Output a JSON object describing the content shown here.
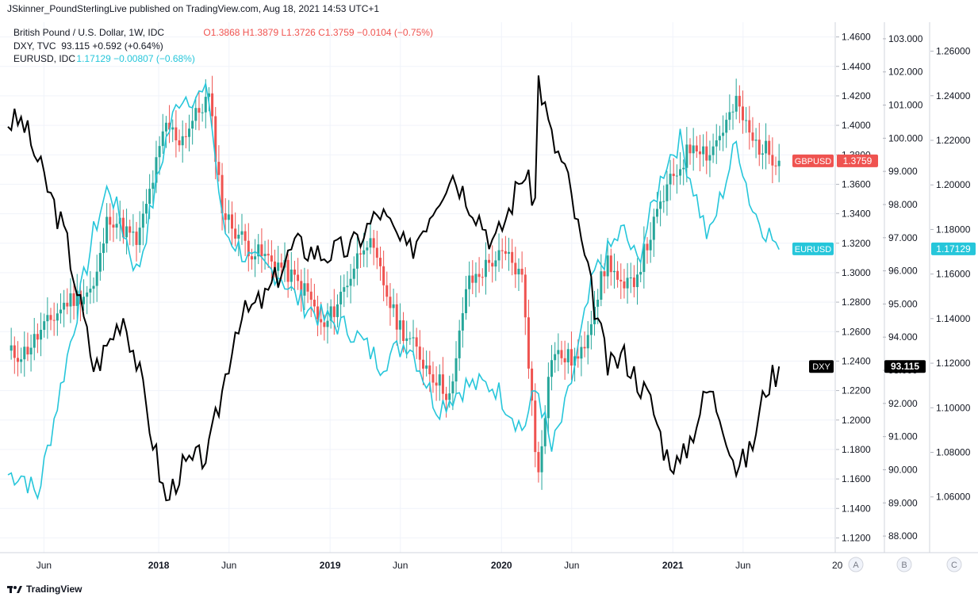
{
  "header": {
    "published": "JSkinner_PoundSterlingLive published on TradingView.com, Aug 18, 2021 14:53 UTC+1"
  },
  "legend": [
    {
      "label": "British Pound / U.S. Dollar, 1W, IDC",
      "values": "O1.3868  H1.3879  L1.3726  C1.3759  −0.0104 (−0.75%)",
      "color": "#ef5350"
    },
    {
      "label": "DXY, TVC",
      "values": "93.115  +0.592 (+0.64%)",
      "color": "#131722"
    },
    {
      "label": "EURUSD, IDC",
      "values": "1.17129  −0.00807 (−0.68%)",
      "color": "#26c6da"
    }
  ],
  "branding": {
    "logo_text": "TradingView"
  },
  "scale_buttons": [
    "A",
    "B",
    "C"
  ],
  "price_badges": [
    {
      "name": "GBPUSD",
      "value": "1.3759",
      "color": "#ef5350"
    },
    {
      "name": "EURUSD",
      "value": "1.17129",
      "color": "#26c6da"
    },
    {
      "name": "DXY",
      "value": "93.115",
      "color": "#000000"
    }
  ],
  "colors": {
    "up": "#26a69a",
    "down": "#ef5350",
    "eurusd": "#26c6da",
    "dxy": "#000000",
    "grid": "#f0f3fa"
  },
  "chart_data": {
    "type": "line",
    "x_tick_labels": [
      "Jun",
      "2018",
      "Jun",
      "2019",
      "Jun",
      "2020",
      "Jun",
      "2021",
      "Jun",
      "20"
    ],
    "axes": {
      "A": {
        "series": "GBPUSD",
        "range": [
          1.11,
          1.47
        ],
        "ticks": [
          "1.4600",
          "1.4400",
          "1.4200",
          "1.4000",
          "1.3800",
          "1.3600",
          "1.3400",
          "1.3200",
          "1.3000",
          "1.2800",
          "1.2600",
          "1.2400",
          "1.2200",
          "1.2000",
          "1.1800",
          "1.1600",
          "1.1400",
          "1.1200"
        ]
      },
      "B": {
        "series": "DXY",
        "range": [
          87.5,
          103.5
        ],
        "ticks": [
          "103.000",
          "102.000",
          "101.000",
          "100.000",
          "99.000",
          "98.000",
          "97.000",
          "96.000",
          "95.000",
          "94.000",
          "93.000",
          "92.000",
          "91.000",
          "90.000",
          "89.000",
          "88.000"
        ]
      },
      "C": {
        "series": "EURUSD",
        "range": [
          1.035,
          1.273
        ],
        "ticks": [
          "1.26000",
          "1.24000",
          "1.22000",
          "1.20000",
          "1.18000",
          "1.16000",
          "1.14000",
          "1.12000",
          "1.10000",
          "1.08000",
          "1.06000"
        ]
      }
    },
    "series": [
      {
        "name": "GBPUSD",
        "style": "candlestick",
        "axis": "A",
        "anchors": [
          [
            "2017-03",
            1.245
          ],
          [
            "2017-06",
            1.28
          ],
          [
            "2017-08",
            1.29
          ],
          [
            "2017-09",
            1.34
          ],
          [
            "2017-11",
            1.32
          ],
          [
            "2018-01",
            1.4
          ],
          [
            "2018-02",
            1.39
          ],
          [
            "2018-04",
            1.42
          ],
          [
            "2018-05",
            1.34
          ],
          [
            "2018-07",
            1.315
          ],
          [
            "2018-09",
            1.305
          ],
          [
            "2018-11",
            1.285
          ],
          [
            "2018-12",
            1.26
          ],
          [
            "2019-02",
            1.3
          ],
          [
            "2019-03",
            1.325
          ],
          [
            "2019-04",
            1.3
          ],
          [
            "2019-05",
            1.27
          ],
          [
            "2019-07",
            1.24
          ],
          [
            "2019-09",
            1.215
          ],
          [
            "2019-10",
            1.29
          ],
          [
            "2019-12",
            1.31
          ],
          [
            "2020-01",
            1.31
          ],
          [
            "2020-02",
            1.295
          ],
          [
            "2020-03",
            1.16
          ],
          [
            "2020-04",
            1.245
          ],
          [
            "2020-06",
            1.24
          ],
          [
            "2020-07",
            1.28
          ],
          [
            "2020-08",
            1.31
          ],
          [
            "2020-09",
            1.285
          ],
          [
            "2020-10",
            1.3
          ],
          [
            "2020-12",
            1.355
          ],
          [
            "2021-02",
            1.39
          ],
          [
            "2021-03",
            1.38
          ],
          [
            "2021-05",
            1.415
          ],
          [
            "2021-06",
            1.39
          ],
          [
            "2021-08",
            1.376
          ]
        ]
      },
      {
        "name": "DXY",
        "style": "line",
        "axis": "B",
        "anchors": [
          [
            "2017-03",
            100.5
          ],
          [
            "2017-06",
            97.0
          ],
          [
            "2017-08",
            93.0
          ],
          [
            "2017-10",
            94.7
          ],
          [
            "2017-11",
            93.2
          ],
          [
            "2018-01",
            89.0
          ],
          [
            "2018-02",
            90.0
          ],
          [
            "2018-04",
            90.5
          ],
          [
            "2018-06",
            94.5
          ],
          [
            "2018-08",
            95.2
          ],
          [
            "2018-10",
            96.8
          ],
          [
            "2018-12",
            96.5
          ],
          [
            "2019-02",
            96.7
          ],
          [
            "2019-04",
            97.8
          ],
          [
            "2019-06",
            96.5
          ],
          [
            "2019-08",
            98.2
          ],
          [
            "2019-09",
            99.0
          ],
          [
            "2019-11",
            97.6
          ],
          [
            "2019-12",
            96.8
          ],
          [
            "2020-01",
            97.8
          ],
          [
            "2020-02",
            99.0
          ],
          [
            "2020-03",
            98.0
          ],
          [
            "2020-03",
            102.0
          ],
          [
            "2020-04",
            100.0
          ],
          [
            "2020-05",
            99.0
          ],
          [
            "2020-06",
            97.0
          ],
          [
            "2020-08",
            93.0
          ],
          [
            "2020-09",
            93.5
          ],
          [
            "2020-11",
            92.0
          ],
          [
            "2020-12",
            90.5
          ],
          [
            "2021-01",
            90.1
          ],
          [
            "2021-03",
            92.5
          ],
          [
            "2021-04",
            91.5
          ],
          [
            "2021-05",
            90.0
          ],
          [
            "2021-06",
            90.6
          ],
          [
            "2021-07",
            92.5
          ],
          [
            "2021-08",
            93.115
          ]
        ]
      },
      {
        "name": "EURUSD",
        "style": "line",
        "axis": "C",
        "anchors": [
          [
            "2017-03",
            1.07
          ],
          [
            "2017-04",
            1.06
          ],
          [
            "2017-06",
            1.12
          ],
          [
            "2017-08",
            1.18
          ],
          [
            "2017-09",
            1.2
          ],
          [
            "2017-11",
            1.16
          ],
          [
            "2018-01",
            1.22
          ],
          [
            "2018-02",
            1.24
          ],
          [
            "2018-04",
            1.24
          ],
          [
            "2018-05",
            1.18
          ],
          [
            "2018-07",
            1.165
          ],
          [
            "2018-09",
            1.16
          ],
          [
            "2018-10",
            1.15
          ],
          [
            "2018-12",
            1.14
          ],
          [
            "2019-02",
            1.135
          ],
          [
            "2019-04",
            1.12
          ],
          [
            "2019-06",
            1.13
          ],
          [
            "2019-08",
            1.1
          ],
          [
            "2019-10",
            1.11
          ],
          [
            "2019-12",
            1.11
          ],
          [
            "2020-02",
            1.09
          ],
          [
            "2020-03",
            1.11
          ],
          [
            "2020-04",
            1.08
          ],
          [
            "2020-05",
            1.1
          ],
          [
            "2020-07",
            1.16
          ],
          [
            "2020-09",
            1.18
          ],
          [
            "2020-10",
            1.165
          ],
          [
            "2020-12",
            1.21
          ],
          [
            "2021-01",
            1.22
          ],
          [
            "2021-03",
            1.175
          ],
          [
            "2021-05",
            1.22
          ],
          [
            "2021-06",
            1.19
          ],
          [
            "2021-07",
            1.18
          ],
          [
            "2021-08",
            1.171
          ]
        ]
      }
    ],
    "grid": true,
    "legend_position": "top-left"
  }
}
